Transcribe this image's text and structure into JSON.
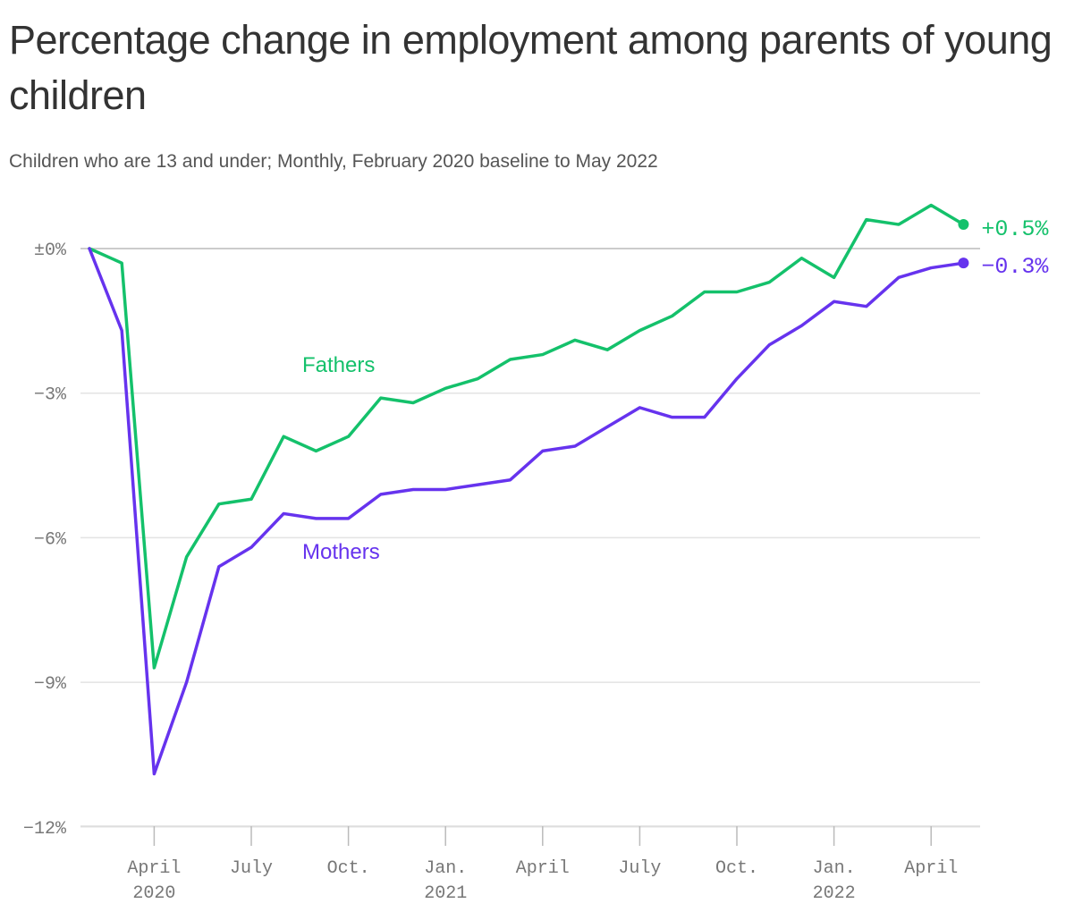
{
  "title": "Percentage change in employment among parents of young children",
  "subtitle": "Children who are 13 and under; Monthly, February 2020 baseline to May 2022",
  "chart_data": {
    "type": "line",
    "x": [
      "2020-02",
      "2020-03",
      "2020-04",
      "2020-05",
      "2020-06",
      "2020-07",
      "2020-08",
      "2020-09",
      "2020-10",
      "2020-11",
      "2020-12",
      "2021-01",
      "2021-02",
      "2021-03",
      "2021-04",
      "2021-05",
      "2021-06",
      "2021-07",
      "2021-08",
      "2021-09",
      "2021-10",
      "2021-11",
      "2021-12",
      "2022-01",
      "2022-02",
      "2022-03",
      "2022-04",
      "2022-05"
    ],
    "series": [
      {
        "name": "Fathers",
        "color": "#14c16b",
        "values": [
          0,
          -0.3,
          -8.7,
          -6.4,
          -5.3,
          -5.2,
          -3.9,
          -4.2,
          -3.9,
          -3.1,
          -3.2,
          -2.9,
          -2.7,
          -2.3,
          -2.2,
          -1.9,
          -2.1,
          -1.7,
          -1.4,
          -0.9,
          -0.9,
          -0.7,
          -0.2,
          -0.6,
          0.6,
          0.5,
          0.9,
          0.5
        ],
        "end_label": "+0.5%"
      },
      {
        "name": "Mothers",
        "color": "#6633ee",
        "values": [
          0,
          -1.7,
          -10.9,
          -9.0,
          -6.6,
          -6.2,
          -5.5,
          -5.6,
          -5.6,
          -5.1,
          -5.0,
          -5.0,
          -4.9,
          -4.8,
          -4.2,
          -4.1,
          -3.7,
          -3.3,
          -3.5,
          -3.5,
          -2.7,
          -2.0,
          -1.6,
          -1.1,
          -1.2,
          -0.6,
          -0.4,
          -0.3
        ],
        "end_label": "−0.3%"
      }
    ],
    "yticks": [
      {
        "value": 0,
        "label": "±0%"
      },
      {
        "value": -3,
        "label": "−3%"
      },
      {
        "value": -6,
        "label": "−6%"
      },
      {
        "value": -9,
        "label": "−9%"
      },
      {
        "value": -12,
        "label": "−12%"
      }
    ],
    "xticks": [
      {
        "x": "2020-04",
        "label": "April",
        "year": "2020"
      },
      {
        "x": "2020-07",
        "label": "July",
        "year": ""
      },
      {
        "x": "2020-10",
        "label": "Oct.",
        "year": ""
      },
      {
        "x": "2021-01",
        "label": "Jan.",
        "year": "2021"
      },
      {
        "x": "2021-04",
        "label": "April",
        "year": ""
      },
      {
        "x": "2021-07",
        "label": "July",
        "year": ""
      },
      {
        "x": "2021-10",
        "label": "Oct.",
        "year": ""
      },
      {
        "x": "2022-01",
        "label": "Jan.",
        "year": "2022"
      },
      {
        "x": "2022-04",
        "label": "April",
        "year": ""
      }
    ],
    "ylim": [
      -12,
      1
    ],
    "grid": true,
    "legend": "inline"
  }
}
